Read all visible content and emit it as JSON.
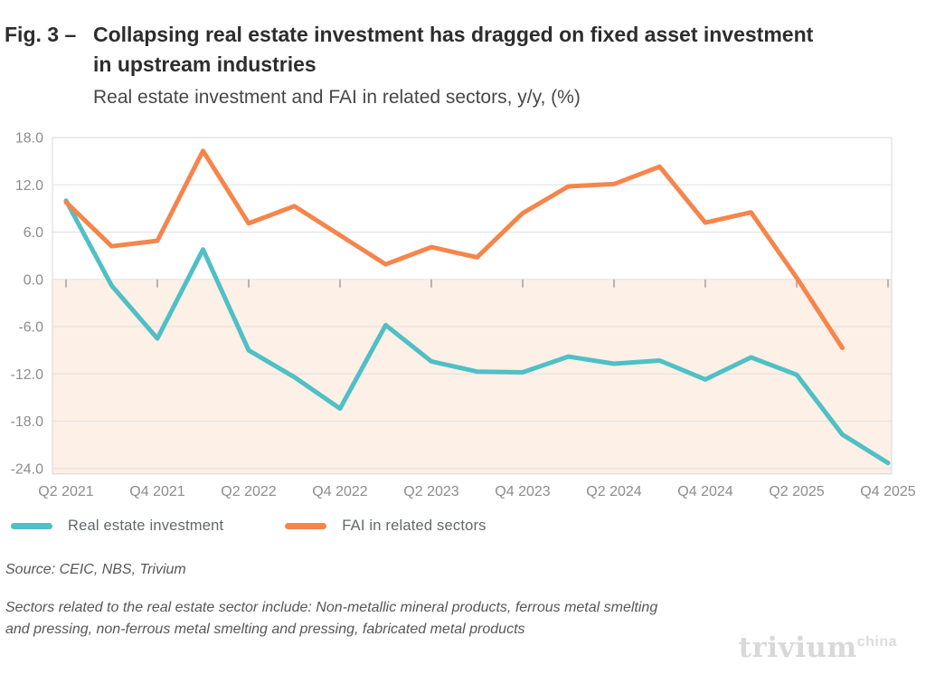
{
  "figure": {
    "fig_label": "Fig. 3 –",
    "title": "Collapsing real estate investment has dragged on fixed asset investment in upstream industries",
    "subtitle": "Real estate investment and FAI in related sectors, y/y, (%)"
  },
  "chart_data": {
    "type": "line",
    "title": "Real estate investment and FAI in related sectors, y/y, (%)",
    "categories": [
      "Q2 2021",
      "Q3 2021",
      "Q4 2021",
      "Q1 2022",
      "Q2 2022",
      "Q3 2022",
      "Q4 2022",
      "Q1 2023",
      "Q2 2023",
      "Q3 2023",
      "Q4 2023",
      "Q1 2024",
      "Q2 2024",
      "Q3 2024",
      "Q4 2024",
      "Q1 2025",
      "Q2 2025",
      "Q3 2025",
      "Q4 2025"
    ],
    "x_label_every": 2,
    "series": [
      {
        "name": "Real estate investment",
        "color": "#4fc0c5",
        "values": [
          10.0,
          -0.8,
          -7.5,
          3.8,
          -9.0,
          -12.4,
          -16.4,
          -5.8,
          -10.4,
          -11.7,
          -11.8,
          -9.8,
          -10.7,
          -10.3,
          -12.7,
          -9.9,
          -12.1,
          -19.7,
          -23.3
        ]
      },
      {
        "name": "FAI in related sectors",
        "color": "#f6854b",
        "values": [
          9.8,
          4.2,
          4.9,
          16.3,
          7.1,
          9.3,
          5.6,
          1.9,
          4.1,
          2.8,
          8.4,
          11.8,
          12.1,
          14.3,
          7.2,
          8.5,
          0.2,
          -8.7,
          null
        ]
      }
    ],
    "ylim": [
      -24,
      18
    ],
    "y_ticks": [
      18,
      12,
      6,
      0,
      -6,
      -12,
      -18,
      -24
    ],
    "y_tick_labels": [
      "18.0",
      "12.0",
      "6.0",
      "0.0",
      "-6.0",
      "-12.0",
      "-18.0",
      "-24.0"
    ],
    "grid": "horizontal",
    "negative_region_fill": "#fdf0e6",
    "grid_color": "#e0e0e0",
    "border_color": "#d8d8d8",
    "tick_color": "#b5b5b5",
    "axis_label_color": "#8c8c8c",
    "legend_position": "bottom-left"
  },
  "legend": {
    "items": [
      {
        "label": "Real estate investment",
        "color": "#4fc0c5"
      },
      {
        "label": "FAI in related sectors",
        "color": "#f6854b"
      }
    ]
  },
  "footer": {
    "source": "Source: CEIC, NBS, Trivium",
    "note": "Sectors related to the real estate sector include: Non-metallic mineral products, ferrous metal smelting and pressing, non-ferrous metal smelting and pressing, fabricated metal products",
    "logo_text": "trivium",
    "logo_superscript": "china"
  }
}
